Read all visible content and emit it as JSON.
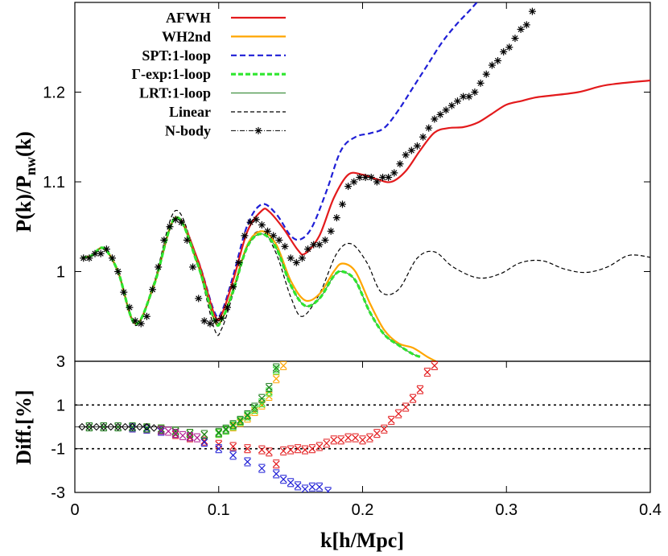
{
  "chart_data": [
    {
      "type": "line",
      "ylabel": "P(k)/P_nw(k)",
      "xlim": [
        0,
        0.4
      ],
      "ylim": [
        0.9,
        1.3
      ],
      "yticks": [
        {
          "v": 1.0,
          "label": "1"
        },
        {
          "v": 1.1,
          "label": "1.1"
        },
        {
          "v": 1.2,
          "label": "1.2"
        }
      ],
      "legend_position": "top-left",
      "series": [
        {
          "name": "AFWH",
          "color": "#e31a1c",
          "style": "solid",
          "x": [
            0.005,
            0.012,
            0.02,
            0.03,
            0.042,
            0.055,
            0.07,
            0.085,
            0.097,
            0.102,
            0.11,
            0.12,
            0.13,
            0.135,
            0.145,
            0.155,
            0.16,
            0.17,
            0.18,
            0.19,
            0.2,
            0.21,
            0.22,
            0.23,
            0.24,
            0.25,
            0.26,
            0.27,
            0.28,
            0.29,
            0.3,
            0.31,
            0.32,
            0.33,
            0.35,
            0.37,
            0.4
          ],
          "y": [
            1.015,
            1.018,
            1.026,
            1.0,
            0.942,
            0.985,
            1.06,
            1.015,
            0.952,
            0.952,
            0.99,
            1.045,
            1.068,
            1.067,
            1.048,
            1.024,
            1.02,
            1.04,
            1.082,
            1.108,
            1.108,
            1.103,
            1.1,
            1.112,
            1.135,
            1.155,
            1.16,
            1.161,
            1.166,
            1.176,
            1.186,
            1.19,
            1.194,
            1.196,
            1.2,
            1.208,
            1.213
          ]
        },
        {
          "name": "WH2nd",
          "color": "#ffa500",
          "style": "solid",
          "x": [
            0.005,
            0.012,
            0.02,
            0.03,
            0.042,
            0.055,
            0.07,
            0.085,
            0.097,
            0.102,
            0.11,
            0.12,
            0.13,
            0.14,
            0.15,
            0.16,
            0.17,
            0.18,
            0.186,
            0.195,
            0.205,
            0.215,
            0.225,
            0.235,
            0.245,
            0.251
          ],
          "y": [
            1.015,
            1.018,
            1.026,
            1.0,
            0.942,
            0.985,
            1.06,
            1.01,
            0.946,
            0.946,
            0.98,
            1.03,
            1.045,
            1.03,
            0.99,
            0.968,
            0.975,
            1.0,
            1.009,
            1.0,
            0.965,
            0.935,
            0.92,
            0.915,
            0.905,
            0.9
          ]
        },
        {
          "name": "SPT:1-loop",
          "color": "#1f1fd6",
          "style": "dashed",
          "x": [
            0.005,
            0.012,
            0.02,
            0.03,
            0.042,
            0.055,
            0.07,
            0.085,
            0.097,
            0.102,
            0.11,
            0.12,
            0.13,
            0.14,
            0.15,
            0.157,
            0.165,
            0.175,
            0.185,
            0.195,
            0.205,
            0.215,
            0.225,
            0.235,
            0.245,
            0.255,
            0.265,
            0.275,
            0.285,
            0.295,
            0.302
          ],
          "y": [
            1.015,
            1.018,
            1.026,
            1.0,
            0.942,
            0.985,
            1.06,
            1.015,
            0.955,
            0.955,
            0.995,
            1.052,
            1.075,
            1.064,
            1.04,
            1.036,
            1.05,
            1.09,
            1.135,
            1.15,
            1.154,
            1.16,
            1.18,
            1.205,
            1.23,
            1.255,
            1.275,
            1.292,
            1.31,
            1.325,
            1.34
          ]
        },
        {
          "name": "Γ-exp:1-loop",
          "color": "#2ee62e",
          "style": "dashed-thick",
          "x": [
            0.005,
            0.012,
            0.02,
            0.03,
            0.042,
            0.055,
            0.07,
            0.085,
            0.097,
            0.102,
            0.11,
            0.12,
            0.13,
            0.14,
            0.15,
            0.16,
            0.17,
            0.18,
            0.186,
            0.195,
            0.205,
            0.215,
            0.225,
            0.235,
            0.24
          ],
          "y": [
            1.015,
            1.018,
            1.026,
            1.0,
            0.942,
            0.985,
            1.06,
            1.01,
            0.946,
            0.946,
            0.978,
            1.028,
            1.042,
            1.026,
            0.985,
            0.962,
            0.97,
            0.995,
            1.0,
            0.99,
            0.955,
            0.93,
            0.918,
            0.908,
            0.905
          ]
        },
        {
          "name": "LRT:1-loop",
          "color": "#1a7a1a",
          "style": "thin",
          "x": [
            0.005,
            0.012,
            0.02,
            0.03,
            0.042,
            0.055,
            0.07,
            0.085,
            0.097,
            0.102,
            0.11,
            0.12,
            0.13,
            0.14,
            0.15,
            0.16,
            0.17,
            0.18,
            0.186,
            0.195,
            0.205,
            0.215,
            0.225,
            0.235,
            0.24
          ],
          "y": [
            1.015,
            1.018,
            1.026,
            1.0,
            0.942,
            0.985,
            1.06,
            1.01,
            0.946,
            0.946,
            0.978,
            1.028,
            1.042,
            1.026,
            0.985,
            0.962,
            0.97,
            0.995,
            1.0,
            0.99,
            0.955,
            0.93,
            0.918,
            0.908,
            0.905
          ]
        },
        {
          "name": "Linear",
          "color": "#000000",
          "style": "dashed-thin",
          "x": [
            0.005,
            0.012,
            0.02,
            0.03,
            0.042,
            0.055,
            0.07,
            0.085,
            0.097,
            0.102,
            0.11,
            0.12,
            0.13,
            0.14,
            0.15,
            0.158,
            0.17,
            0.182,
            0.192,
            0.203,
            0.213,
            0.225,
            0.238,
            0.25,
            0.263,
            0.28,
            0.295,
            0.31,
            0.325,
            0.34,
            0.355,
            0.37,
            0.385,
            0.4
          ],
          "y": [
            1.015,
            1.018,
            1.026,
            1.0,
            0.94,
            0.988,
            1.068,
            1.01,
            0.936,
            0.936,
            0.975,
            1.03,
            1.045,
            1.02,
            0.972,
            0.95,
            0.975,
            1.02,
            1.031,
            1.01,
            0.977,
            0.98,
            1.015,
            1.022,
            1.005,
            0.993,
            0.997,
            1.01,
            1.012,
            1.003,
            0.999,
            1.005,
            1.018,
            1.016
          ]
        },
        {
          "name": "N-body",
          "color": "#000000",
          "style": "dashdot-star",
          "x": [
            0.006,
            0.01,
            0.014,
            0.018,
            0.022,
            0.026,
            0.03,
            0.034,
            0.038,
            0.042,
            0.046,
            0.05,
            0.054,
            0.058,
            0.062,
            0.066,
            0.07,
            0.074,
            0.078,
            0.082,
            0.086,
            0.09,
            0.094,
            0.098,
            0.102,
            0.106,
            0.11,
            0.114,
            0.118,
            0.122,
            0.126,
            0.13,
            0.134,
            0.138,
            0.142,
            0.146,
            0.15,
            0.154,
            0.158,
            0.162,
            0.166,
            0.17,
            0.174,
            0.178,
            0.182,
            0.186,
            0.19,
            0.194,
            0.198,
            0.202,
            0.206,
            0.21,
            0.214,
            0.218,
            0.222,
            0.226,
            0.23,
            0.234,
            0.238,
            0.242,
            0.246,
            0.25,
            0.254,
            0.258,
            0.262,
            0.266,
            0.27,
            0.274,
            0.278,
            0.282,
            0.286,
            0.29,
            0.294,
            0.298,
            0.302,
            0.306,
            0.31,
            0.314,
            0.318
          ],
          "y": [
            1.015,
            1.015,
            1.02,
            1.02,
            1.025,
            1.015,
            1.0,
            0.977,
            0.96,
            0.945,
            0.942,
            0.95,
            0.98,
            1.005,
            1.035,
            1.05,
            1.058,
            1.055,
            1.035,
            1.005,
            0.97,
            0.945,
            0.942,
            0.945,
            0.948,
            0.96,
            0.983,
            1.01,
            1.04,
            1.055,
            1.058,
            1.052,
            1.045,
            1.04,
            1.035,
            1.028,
            1.015,
            1.01,
            1.015,
            1.025,
            1.03,
            1.03,
            1.035,
            1.045,
            1.06,
            1.075,
            1.095,
            1.1,
            1.105,
            1.105,
            1.105,
            1.1,
            1.105,
            1.105,
            1.11,
            1.12,
            1.13,
            1.135,
            1.14,
            1.15,
            1.16,
            1.17,
            1.175,
            1.18,
            1.185,
            1.19,
            1.195,
            1.195,
            1.2,
            1.21,
            1.22,
            1.23,
            1.235,
            1.245,
            1.25,
            1.26,
            1.27,
            1.275,
            1.29
          ]
        }
      ]
    },
    {
      "type": "scatter",
      "xlabel": "k[h/Mpc]",
      "ylabel": "Diff.[%]",
      "xlim": [
        0,
        0.4
      ],
      "ylim": [
        -3,
        3
      ],
      "xticks": [
        {
          "v": 0,
          "label": "0"
        },
        {
          "v": 0.1,
          "label": "0.1"
        },
        {
          "v": 0.2,
          "label": "0.2"
        },
        {
          "v": 0.3,
          "label": "0.3"
        },
        {
          "v": 0.4,
          "label": "0.4"
        }
      ],
      "yticks": [
        {
          "v": -3,
          "label": "-3"
        },
        {
          "v": -1,
          "label": "-1"
        },
        {
          "v": 1,
          "label": "1"
        },
        {
          "v": 3,
          "label": "3"
        }
      ],
      "reference_lines": [
        {
          "y": 1,
          "style": "dotted"
        },
        {
          "y": -1,
          "style": "dotted"
        },
        {
          "y": 0,
          "style": "solid-thin"
        }
      ],
      "series": [
        {
          "name": "AFWH",
          "color": "#e31a1c",
          "x": [
            0.01,
            0.02,
            0.03,
            0.04,
            0.05,
            0.06,
            0.07,
            0.08,
            0.09,
            0.1,
            0.11,
            0.12,
            0.13,
            0.135,
            0.14,
            0.145,
            0.15,
            0.155,
            0.16,
            0.165,
            0.17,
            0.175,
            0.18,
            0.185,
            0.19,
            0.195,
            0.2,
            0.205,
            0.21,
            0.215,
            0.22,
            0.225,
            0.23,
            0.235,
            0.24,
            0.245,
            0.25
          ],
          "y": [
            0,
            0,
            0,
            -0.05,
            -0.1,
            -0.2,
            -0.35,
            -0.5,
            -0.65,
            -0.8,
            -0.9,
            -1.0,
            -1.05,
            -1.15,
            -1.7,
            -1.1,
            -1.05,
            -1.0,
            -1.05,
            -1.0,
            -0.9,
            -0.75,
            -0.6,
            -0.6,
            -0.5,
            -0.5,
            -0.6,
            -0.5,
            -0.3,
            -0.1,
            0.3,
            0.6,
            0.9,
            1.3,
            1.7,
            2.5,
            2.8
          ]
        },
        {
          "name": "WH2nd",
          "color": "#ffa500",
          "x": [
            0.01,
            0.02,
            0.03,
            0.04,
            0.05,
            0.06,
            0.07,
            0.08,
            0.09,
            0.1,
            0.105,
            0.11,
            0.115,
            0.12,
            0.125,
            0.13,
            0.135,
            0.14,
            0.145
          ],
          "y": [
            0,
            0,
            0,
            0,
            -0.05,
            -0.1,
            -0.2,
            -0.3,
            -0.35,
            -0.3,
            -0.15,
            0,
            0.2,
            0.4,
            0.7,
            1.0,
            1.4,
            2.2,
            2.8
          ]
        },
        {
          "name": "SPT:1-loop",
          "color": "#1f1fd6",
          "x": [
            0.01,
            0.02,
            0.03,
            0.04,
            0.05,
            0.06,
            0.07,
            0.08,
            0.09,
            0.1,
            0.11,
            0.12,
            0.13,
            0.14,
            0.145,
            0.15,
            0.155,
            0.16,
            0.165,
            0.17,
            0.176
          ],
          "y": [
            0,
            0,
            0,
            -0.05,
            -0.1,
            -0.2,
            -0.3,
            -0.45,
            -0.7,
            -1.0,
            -1.3,
            -1.6,
            -1.9,
            -2.15,
            -2.4,
            -2.55,
            -2.7,
            -2.85,
            -2.75,
            -2.75,
            -2.95
          ]
        },
        {
          "name": "Γ-exp:1-loop",
          "color": "#2ee62e",
          "x": [
            0.01,
            0.02,
            0.03,
            0.04,
            0.05,
            0.06,
            0.07,
            0.08,
            0.09,
            0.1,
            0.105,
            0.11,
            0.115,
            0.12,
            0.125,
            0.13,
            0.135,
            0.14
          ],
          "y": [
            0,
            0,
            0,
            0,
            -0.05,
            -0.1,
            -0.2,
            -0.3,
            -0.35,
            -0.3,
            -0.15,
            0.05,
            0.25,
            0.5,
            0.8,
            1.1,
            1.6,
            2.6
          ]
        },
        {
          "name": "LRT:1-loop",
          "color": "#1a7a1a",
          "x": [
            0.01,
            0.02,
            0.03,
            0.04,
            0.05,
            0.06,
            0.07,
            0.08,
            0.09,
            0.1,
            0.105,
            0.11,
            0.115,
            0.12,
            0.125,
            0.13,
            0.135,
            0.14
          ],
          "y": [
            0,
            0,
            0,
            0,
            -0.05,
            -0.1,
            -0.2,
            -0.3,
            -0.35,
            -0.25,
            -0.1,
            0.1,
            0.3,
            0.55,
            0.9,
            1.3,
            1.8,
            2.7
          ]
        },
        {
          "name": "",
          "color": "#b0198f",
          "x": [
            0.06,
            0.065,
            0.07,
            0.075,
            0.08,
            0.085
          ],
          "y": [
            -0.15,
            -0.2,
            -0.3,
            -0.4,
            -0.45,
            -0.5
          ]
        },
        {
          "name": "",
          "color": "#000000",
          "x": [
            0.005,
            0.01,
            0.015,
            0.02,
            0.025,
            0.03,
            0.035,
            0.04,
            0.045,
            0.05,
            0.055
          ],
          "y": [
            0,
            0,
            0,
            0,
            0,
            0,
            0,
            0,
            0,
            0,
            -0.05
          ]
        }
      ]
    }
  ]
}
